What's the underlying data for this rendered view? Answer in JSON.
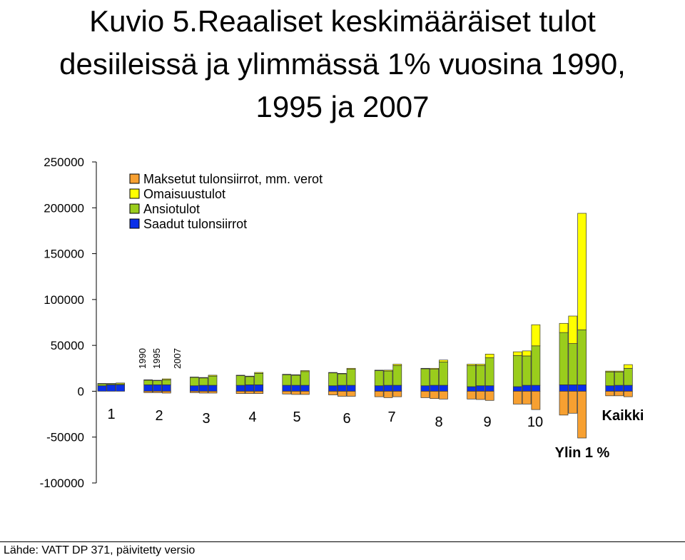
{
  "title_lines": [
    "Kuvio 5.Reaaliset keskimääräiset tulot",
    "desiileissä ja ylimmässä 1% vuosina 1990,",
    "1995 ja 2007"
  ],
  "source": "Lähde: VATT DP 371, päivitetty versio",
  "chart_data": {
    "type": "bar",
    "stacked": true,
    "title": "Kuvio 5.Reaaliset keskimääräiset tulot desiileissä ja ylimmässä 1% vuosina 1990, 1995 ja 2007",
    "ylim": [
      -100000,
      250000
    ],
    "yticks": [
      250000,
      200000,
      150000,
      100000,
      50000,
      0,
      -50000,
      -100000
    ],
    "grid": false,
    "legend_position": "top-left",
    "group_labels": [
      "1",
      "2",
      "3",
      "4",
      "5",
      "6",
      "7",
      "8",
      "9",
      "10",
      "Ylin 1 %",
      "Kaikki"
    ],
    "year_labels": [
      "1990",
      "1995",
      "2007"
    ],
    "series": [
      {
        "name": "Maksetut tulonsiirrot, mm. verot",
        "color": "#F7A031",
        "values": [
          [
            0,
            0,
            0
          ],
          [
            -1500,
            -1500,
            -2000
          ],
          [
            -1500,
            -2000,
            -2000
          ],
          [
            -2500,
            -2500,
            -2500
          ],
          [
            -3000,
            -3500,
            -3500
          ],
          [
            -4000,
            -5500,
            -5500
          ],
          [
            -6000,
            -7000,
            -6000
          ],
          [
            -7000,
            -8000,
            -8500
          ],
          [
            -8500,
            -9000,
            -10000
          ],
          [
            -14000,
            -14000,
            -20000
          ],
          [
            -26000,
            -24000,
            -51000
          ],
          [
            -5000,
            -5000,
            -6000
          ]
        ]
      },
      {
        "name": "Saadut tulonsiirrot",
        "color": "#0A2FE8",
        "values": [
          [
            6000,
            7000,
            7000
          ],
          [
            7000,
            7000,
            7000
          ],
          [
            6000,
            6500,
            6500
          ],
          [
            6500,
            7000,
            7000
          ],
          [
            6500,
            6500,
            6500
          ],
          [
            6000,
            6500,
            6500
          ],
          [
            6000,
            6500,
            6500
          ],
          [
            6000,
            6500,
            6500
          ],
          [
            5000,
            6000,
            6000
          ],
          [
            5000,
            6500,
            6500
          ],
          [
            7000,
            7000,
            7000
          ],
          [
            6000,
            6500,
            6500
          ]
        ]
      },
      {
        "name": "Ansiotulot",
        "color": "#9ACD1C",
        "values": [
          [
            2000,
            1000,
            1000
          ],
          [
            5000,
            4500,
            5500
          ],
          [
            9000,
            8000,
            10000
          ],
          [
            10500,
            9000,
            12500
          ],
          [
            11500,
            11000,
            15000
          ],
          [
            14000,
            12500,
            17500
          ],
          [
            16500,
            15500,
            21500
          ],
          [
            18500,
            17500,
            25500
          ],
          [
            23000,
            22000,
            30500
          ],
          [
            34000,
            32000,
            43000
          ],
          [
            57000,
            45000,
            60000
          ],
          [
            15000,
            14500,
            18500
          ]
        ]
      },
      {
        "name": "Omaisuustulot",
        "color": "#FFFF00",
        "values": [
          [
            500,
            500,
            1000
          ],
          [
            500,
            500,
            1000
          ],
          [
            500,
            500,
            1000
          ],
          [
            500,
            500,
            1000
          ],
          [
            500,
            500,
            1000
          ],
          [
            500,
            500,
            1000
          ],
          [
            500,
            1000,
            1500
          ],
          [
            500,
            1000,
            2000
          ],
          [
            1500,
            1500,
            4000
          ],
          [
            4000,
            5500,
            23000
          ],
          [
            10000,
            30000,
            127000
          ],
          [
            1000,
            1000,
            4000
          ]
        ]
      }
    ]
  }
}
